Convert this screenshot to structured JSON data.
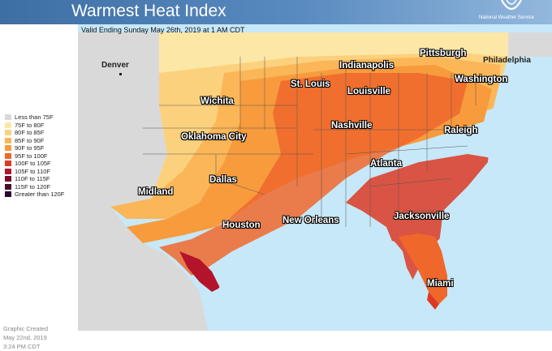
{
  "header": {
    "title": "Warmest Heat Index",
    "agency": "National Weather Service"
  },
  "valid_time": "Valid Ending Sunday May 26th, 2019 at 1 AM CDT",
  "legend": [
    {
      "label": "Less than 75F",
      "color": "#d9d9d9"
    },
    {
      "label": "75F to 80F",
      "color": "#fde7a6"
    },
    {
      "label": "80F to 85F",
      "color": "#fcd17d"
    },
    {
      "label": "85F to 90F",
      "color": "#fbb658"
    },
    {
      "label": "90F to 95F",
      "color": "#f79b3d"
    },
    {
      "label": "95F to 100F",
      "color": "#f0672b"
    },
    {
      "label": "100F to 105F",
      "color": "#dc3a25"
    },
    {
      "label": "105F to 110F",
      "color": "#b3132b"
    },
    {
      "label": "110F to 115F",
      "color": "#7a0a2b"
    },
    {
      "label": "115F to 120F",
      "color": "#4a0a2a"
    },
    {
      "label": "Greater than 120F",
      "color": "#2a0630"
    }
  ],
  "credit": {
    "line1": "Graphic Created",
    "line2": "May 22nd, 2019",
    "line3": "3:24 PM CDT"
  },
  "cities": {
    "denver": "Denver",
    "wichita": "Wichita",
    "oklahoma_city": "Oklahoma City",
    "dallas": "Dallas",
    "midland": "Midland",
    "houston": "Houston",
    "new_orleans": "New Orleans",
    "st_louis": "St. Louis",
    "indianapolis": "Indianapolis",
    "louisville": "Louisville",
    "nashville": "Nashville",
    "atlanta": "Atlanta",
    "jacksonville": "Jacksonville",
    "miami": "Miami",
    "raleigh": "Raleigh",
    "washington": "Washington",
    "pittsburgh": "Pittsburgh",
    "philadelphia": "Philadelphia"
  },
  "colors": {
    "water": "#c7e8f8",
    "no_data": "#d9d9d9",
    "header_blue": "#3d6ea4"
  }
}
